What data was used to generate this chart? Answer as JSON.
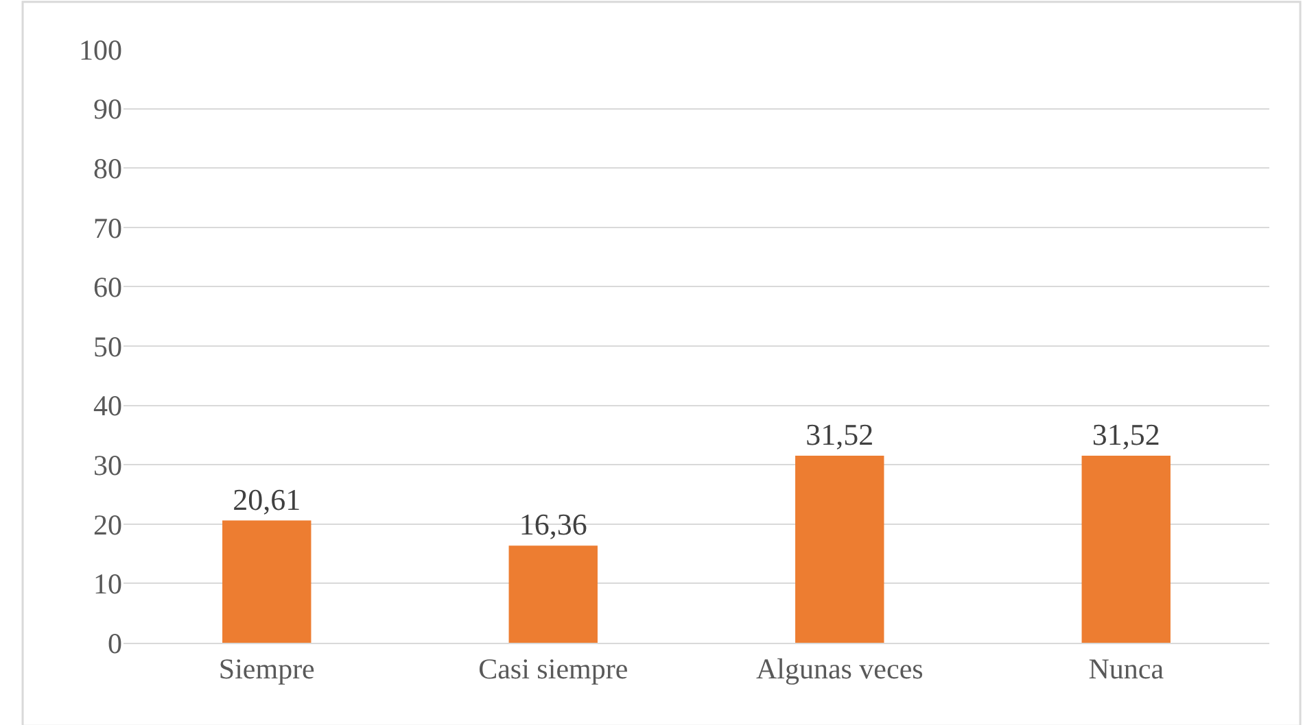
{
  "chart_data": {
    "type": "bar",
    "categories": [
      "Siempre",
      "Casi siempre",
      "Algunas veces",
      "Nunca"
    ],
    "values": [
      20.61,
      16.36,
      31.52,
      31.52
    ],
    "value_labels": [
      "20,61",
      "16,36",
      "31,52",
      "31,52"
    ],
    "color": "#ed7d31",
    "ylim": [
      0,
      100
    ],
    "yticks": [
      0,
      10,
      20,
      30,
      40,
      50,
      60,
      70,
      80,
      90,
      100
    ],
    "grid": "y",
    "legend": false
  }
}
